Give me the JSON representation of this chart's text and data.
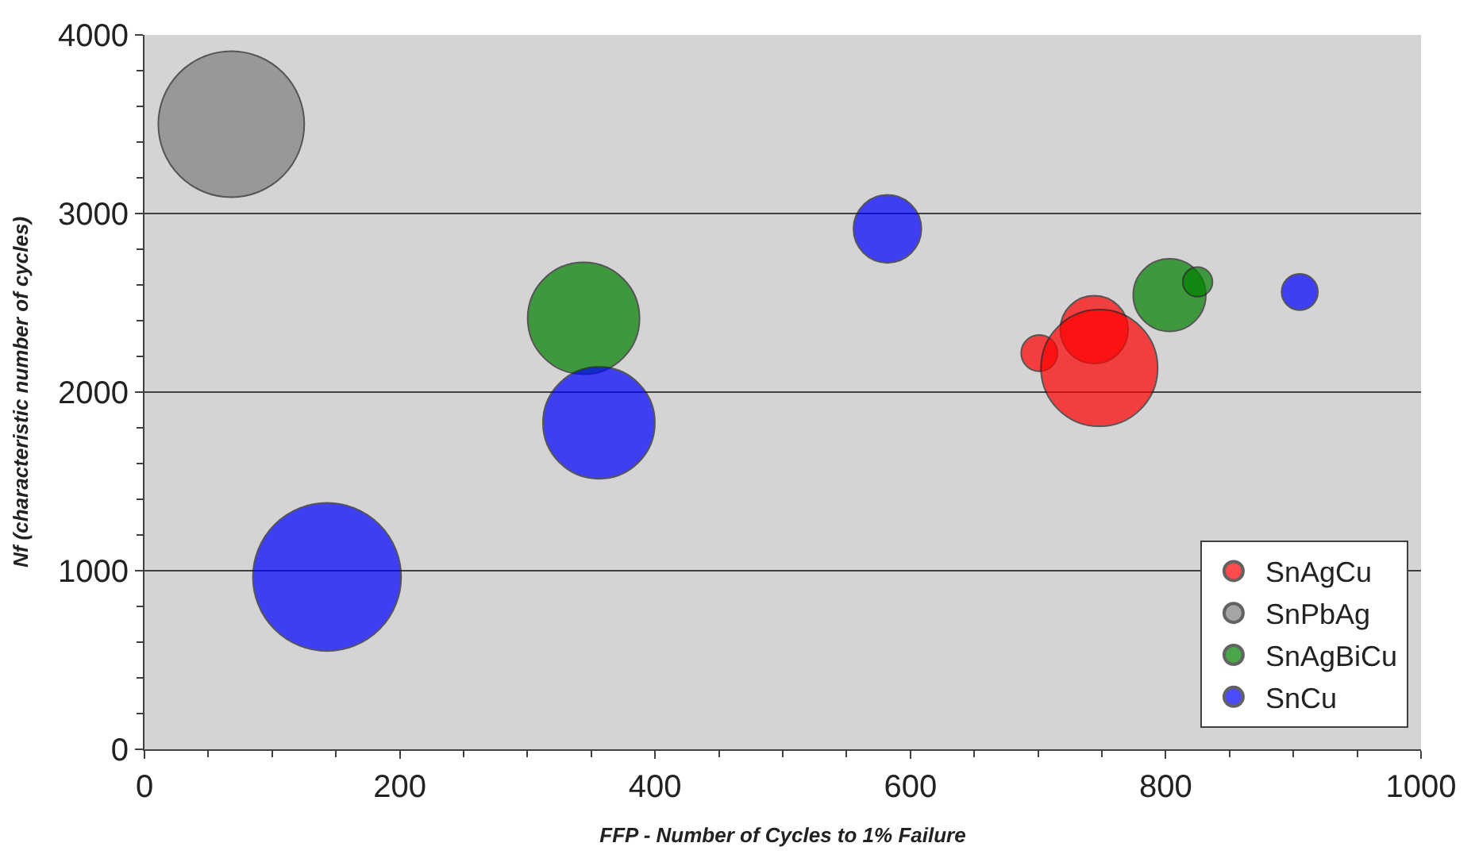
{
  "chart_data": {
    "type": "bubble",
    "xlabel": "FFP - Number of Cycles to 1% Failure",
    "ylabel": "Nf (characteristic number of cycles)",
    "xlim": [
      0,
      1000
    ],
    "xticks": [
      0,
      200,
      400,
      600,
      800,
      1000
    ],
    "ylim": [
      0,
      4000
    ],
    "yticks": [
      0,
      1000,
      2000,
      3000,
      4000
    ],
    "grid": "y",
    "legend": "bottom right",
    "series": [
      {
        "name": "SnAgCu",
        "color": "#ff0000",
        "x": [
          701,
          744,
          748
        ],
        "values": [
          2218,
          2350,
          2135
        ],
        "sizes": [
          0.06,
          0.21,
          0.62
        ]
      },
      {
        "name": "SnPbAg",
        "color": "#808080",
        "x": [
          68
        ],
        "values": [
          3500
        ],
        "sizes": [
          0.97
        ]
      },
      {
        "name": "SnAgBiCu",
        "color": "#008000",
        "x": [
          344,
          803,
          825
        ],
        "values": [
          2413,
          2543,
          2617
        ],
        "sizes": [
          0.57,
          0.24,
          0.04
        ]
      },
      {
        "name": "SnCu",
        "color": "#0000ff",
        "x": [
          143,
          356,
          582,
          905
        ],
        "values": [
          965,
          1828,
          2914,
          2561
        ],
        "sizes": [
          1,
          0.57,
          0.21,
          0.06
        ]
      }
    ]
  }
}
